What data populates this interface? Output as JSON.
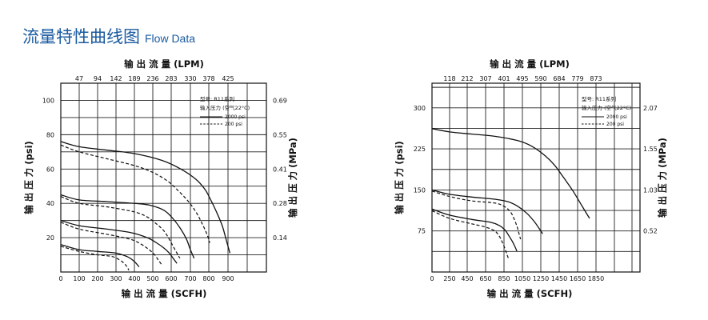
{
  "title": {
    "cn": "流量特性曲线图",
    "en": "Flow Data"
  },
  "chart_data": [
    {
      "type": "line",
      "top_axis_label": "输 出 流 量 (LPM)",
      "top_ticks": [
        "47",
        "94",
        "142",
        "189",
        "236",
        "283",
        "330",
        "378",
        "425"
      ],
      "xlabel": "输 出 流 量 (SCFH)",
      "xticks": [
        0,
        100,
        200,
        300,
        400,
        500,
        600,
        700,
        800,
        900
      ],
      "xlim": [
        0,
        1200
      ],
      "ylabel": "输 出 压 力 (psi)",
      "yticks": [
        20,
        40,
        60,
        80,
        100
      ],
      "ylim": [
        0,
        110
      ],
      "right_label": "输 出 压 力 (MPa)",
      "right_ticks": [
        {
          "psi": 20,
          "label": "0.14"
        },
        {
          "psi": 40,
          "label": "0.28"
        },
        {
          "psi": 60,
          "label": "0.41"
        },
        {
          "psi": 80,
          "label": "0.55"
        },
        {
          "psi": 100,
          "label": "0.69"
        }
      ],
      "legend": {
        "lines": [
          "型号: R11系列",
          "输入压力 (空气22°C)"
        ],
        "entries": [
          {
            "style": "solid",
            "label": "2000 psi"
          },
          {
            "style": "dashed",
            "label": "200 psi"
          }
        ]
      },
      "series": [
        {
          "style": "solid",
          "x": [
            0,
            100,
            250,
            400,
            550,
            650,
            730,
            780,
            810,
            840,
            870,
            890,
            910
          ],
          "y": [
            76,
            73,
            71,
            69,
            65,
            60,
            54,
            48,
            42,
            35,
            27,
            19,
            11
          ]
        },
        {
          "style": "dashed",
          "x": [
            0,
            100,
            250,
            400,
            500,
            580,
            640,
            690,
            730,
            760,
            790,
            805
          ],
          "y": [
            74,
            70,
            66,
            62,
            58,
            53,
            47,
            41,
            35,
            29,
            22,
            17
          ]
        },
        {
          "style": "solid",
          "x": [
            0,
            100,
            250,
            400,
            480,
            560,
            610,
            650,
            680,
            700,
            720
          ],
          "y": [
            45,
            42,
            41,
            40,
            39,
            36,
            31,
            25,
            19,
            13,
            8
          ]
        },
        {
          "style": "dashed",
          "x": [
            0,
            100,
            250,
            400,
            470,
            520,
            560,
            590,
            610,
            630,
            645
          ],
          "y": [
            44,
            40,
            38,
            35,
            32,
            28,
            24,
            19,
            15,
            11,
            8
          ]
        },
        {
          "style": "solid",
          "x": [
            0,
            100,
            250,
            380,
            470,
            520,
            560,
            590,
            610,
            630
          ],
          "y": [
            30,
            27,
            25,
            23,
            20,
            17,
            14,
            11,
            8,
            5
          ]
        },
        {
          "style": "dashed",
          "x": [
            0,
            100,
            250,
            380,
            440,
            480,
            510,
            530,
            550
          ],
          "y": [
            29,
            25,
            22,
            19,
            16,
            13,
            10,
            7,
            4
          ]
        },
        {
          "style": "solid",
          "x": [
            0,
            100,
            200,
            300,
            360,
            390,
            410,
            425
          ],
          "y": [
            16,
            13,
            12,
            11,
            9,
            7,
            5,
            3
          ]
        },
        {
          "style": "dashed",
          "x": [
            0,
            100,
            200,
            280,
            320,
            345,
            360,
            370
          ],
          "y": [
            15,
            12,
            10,
            9,
            7,
            5,
            3,
            1
          ]
        }
      ]
    },
    {
      "type": "line",
      "top_axis_label": "输 出 流 量 (LPM)",
      "top_ticks": [
        "118",
        "212",
        "307",
        "401",
        "495",
        "590",
        "684",
        "779",
        "873"
      ],
      "xlabel": "输 出 流 量 (SCFH)",
      "xticks": [
        0,
        250,
        450,
        650,
        850,
        1050,
        1250,
        1450,
        1650,
        1850
      ],
      "xlim": [
        0,
        2500
      ],
      "ylabel": "输 出 压 力 (psi)",
      "yticks": [
        75,
        150,
        225,
        300
      ],
      "ylim": [
        0,
        345
      ],
      "right_label": "输 出 压 力 (MPa)",
      "right_ticks": [
        {
          "psi": 75,
          "label": "0.52"
        },
        {
          "psi": 150,
          "label": "1.03"
        },
        {
          "psi": 225,
          "label": "1.55"
        },
        {
          "psi": 300,
          "label": "2.07"
        }
      ],
      "legend": {
        "lines": [
          "型号: R11系列",
          "输入压力 (空气22°C)"
        ],
        "entries": [
          {
            "style": "solid",
            "label": "2000 psi"
          },
          {
            "style": "dashed",
            "label": "200 psi"
          }
        ]
      },
      "series": [
        {
          "style": "solid",
          "x": [
            0,
            250,
            500,
            750,
            1000,
            1150,
            1300,
            1400,
            1500,
            1600,
            1700,
            1780
          ],
          "y": [
            262,
            256,
            252,
            248,
            240,
            230,
            212,
            195,
            172,
            148,
            120,
            98
          ]
        },
        {
          "style": "solid",
          "x": [
            0,
            250,
            500,
            750,
            900,
            1000,
            1100,
            1180,
            1230,
            1270
          ],
          "y": [
            150,
            142,
            137,
            133,
            128,
            120,
            107,
            92,
            80,
            70
          ]
        },
        {
          "style": "dashed",
          "x": [
            0,
            250,
            500,
            750,
            850,
            920,
            960,
            990,
            1010,
            1030
          ],
          "y": [
            148,
            138,
            130,
            126,
            120,
            110,
            97,
            84,
            72,
            60
          ]
        },
        {
          "style": "solid",
          "x": [
            0,
            250,
            500,
            700,
            800,
            860,
            900,
            940,
            970,
            990
          ],
          "y": [
            115,
            104,
            96,
            91,
            85,
            77,
            67,
            56,
            46,
            38
          ]
        },
        {
          "style": "dashed",
          "x": [
            0,
            250,
            500,
            650,
            750,
            800,
            830,
            860,
            880,
            900
          ],
          "y": [
            112,
            98,
            88,
            82,
            75,
            65,
            55,
            43,
            33,
            24
          ]
        }
      ]
    }
  ]
}
